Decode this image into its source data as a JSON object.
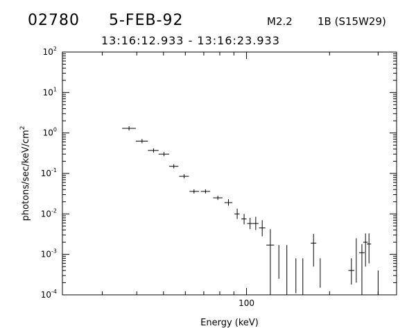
{
  "header": {
    "event_id": "02780",
    "date": "5-FEB-92",
    "goes_class": "M2.2",
    "flare_class": "1B (S15W29)",
    "time_range": "13:16:12.933 - 13:16:23.933"
  },
  "chart_data": {
    "type": "scatter",
    "title": "",
    "xlabel": "Energy (keV)",
    "ylabel_base": "photons/sec/keV/cm",
    "ylabel_sup": "2",
    "x_scale": "log",
    "y_scale": "log",
    "xlim": [
      21.5,
      350
    ],
    "ylim": [
      0.0001,
      100
    ],
    "x_tick_labels": [
      {
        "value": 100,
        "label": "100"
      }
    ],
    "x_major_ticks": [
      100
    ],
    "x_minor_ticks": [
      30,
      40,
      50,
      60,
      70,
      80,
      90,
      200,
      300
    ],
    "y_tick_labels": [
      {
        "value": 0.0001,
        "base": "10",
        "exp": "-4"
      },
      {
        "value": 0.001,
        "base": "10",
        "exp": "-3"
      },
      {
        "value": 0.01,
        "base": "10",
        "exp": "-2"
      },
      {
        "value": 0.1,
        "base": "10",
        "exp": "-1"
      },
      {
        "value": 1,
        "base": "10",
        "exp": "0"
      },
      {
        "value": 10,
        "base": "10",
        "exp": "1"
      },
      {
        "value": 100,
        "base": "10",
        "exp": "2"
      }
    ],
    "grid": false,
    "series": [
      {
        "points": [
          {
            "x": 37.5,
            "y": 1.3,
            "x_lo": 35.4,
            "x_hi": 39.7
          },
          {
            "x": 41.8,
            "y": 0.63,
            "x_lo": 39.7,
            "x_hi": 43.9
          },
          {
            "x": 46.0,
            "y": 0.37,
            "x_lo": 43.9,
            "x_hi": 48.0
          },
          {
            "x": 50.2,
            "y": 0.3,
            "x_lo": 48.0,
            "x_hi": 52.4
          },
          {
            "x": 54.5,
            "y": 0.15,
            "x_lo": 52.4,
            "x_hi": 56.6
          },
          {
            "x": 59.4,
            "y": 0.085,
            "x_lo": 57.0,
            "x_hi": 61.8
          },
          {
            "x": 64.5,
            "y": 0.036,
            "x_lo": 62.1,
            "x_hi": 67.3
          },
          {
            "x": 71.0,
            "y": 0.036,
            "x_lo": 68.3,
            "x_hi": 73.8
          },
          {
            "x": 78.7,
            "y": 0.025,
            "x_lo": 75.7,
            "x_hi": 81.8
          },
          {
            "x": 86.0,
            "y": 0.019,
            "x_lo": 83.2,
            "x_hi": 88.9,
            "y_lo": 0.016,
            "y_hi": 0.023
          },
          {
            "x": 92.5,
            "y": 0.01,
            "x_lo": 90.4,
            "x_hi": 94.4,
            "y_lo": 0.0075,
            "y_hi": 0.0135
          },
          {
            "x": 98.0,
            "y": 0.0075,
            "x_lo": 95.8,
            "x_hi": 100.0,
            "y_lo": 0.0055,
            "y_hi": 0.01
          },
          {
            "x": 103.0,
            "y": 0.0058,
            "x_lo": 100.5,
            "x_hi": 105.5,
            "y_lo": 0.0042,
            "y_hi": 0.008
          },
          {
            "x": 108.0,
            "y": 0.0058,
            "x_lo": 105.5,
            "x_hi": 110.5,
            "y_lo": 0.004,
            "y_hi": 0.0085
          },
          {
            "x": 114.0,
            "y": 0.0045,
            "x_lo": 111.0,
            "x_hi": 117.0,
            "y_lo": 0.0028,
            "y_hi": 0.007
          },
          {
            "x": 122.0,
            "y": 0.0017,
            "x_lo": 118.0,
            "x_hi": 126.0,
            "y_lo": 0.0001,
            "y_hi": 0.0042
          },
          {
            "x": 131.0,
            "y": 0.0017,
            "y_lo": 0.00025,
            "y_hi": 0.0017
          },
          {
            "x": 140.0,
            "y": 0.0017,
            "y_lo": 0.0001,
            "y_hi": 0.0017
          },
          {
            "x": 151.0,
            "y": 0.0008,
            "y_lo": 0.00011,
            "y_hi": 0.0008
          },
          {
            "x": 160.0,
            "y": 0.0008,
            "y_lo": 0.0001,
            "y_hi": 0.0008
          },
          {
            "x": 175.0,
            "y": 0.0019,
            "x_lo": 171.0,
            "x_hi": 179.0,
            "y_lo": 0.0005,
            "y_hi": 0.0032
          },
          {
            "x": 185.0,
            "y": 0.0008,
            "y_lo": 0.00015,
            "y_hi": 0.0008
          },
          {
            "x": 240.0,
            "y": 0.0004,
            "x_lo": 234.0,
            "x_hi": 246.0,
            "y_lo": 0.00018,
            "y_hi": 0.0008
          },
          {
            "x": 250.0,
            "y": 0.0014,
            "y_lo": 0.0002,
            "y_hi": 0.0025
          },
          {
            "x": 262.0,
            "y": 0.0011,
            "x_lo": 256.0,
            "x_hi": 268.0,
            "y_lo": 0.0001,
            "y_hi": 0.0018
          },
          {
            "x": 270.0,
            "y": 0.002,
            "x_lo": 265.0,
            "x_hi": 275.0,
            "y_lo": 0.0005,
            "y_hi": 0.0033
          },
          {
            "x": 278.0,
            "y": 0.0018,
            "x_lo": 273.0,
            "x_hi": 283.0,
            "y_lo": 0.0006,
            "y_hi": 0.0033
          },
          {
            "x": 300.0,
            "y": 0.0004,
            "y_lo": 8e-05,
            "y_hi": 0.0004
          }
        ]
      }
    ]
  }
}
